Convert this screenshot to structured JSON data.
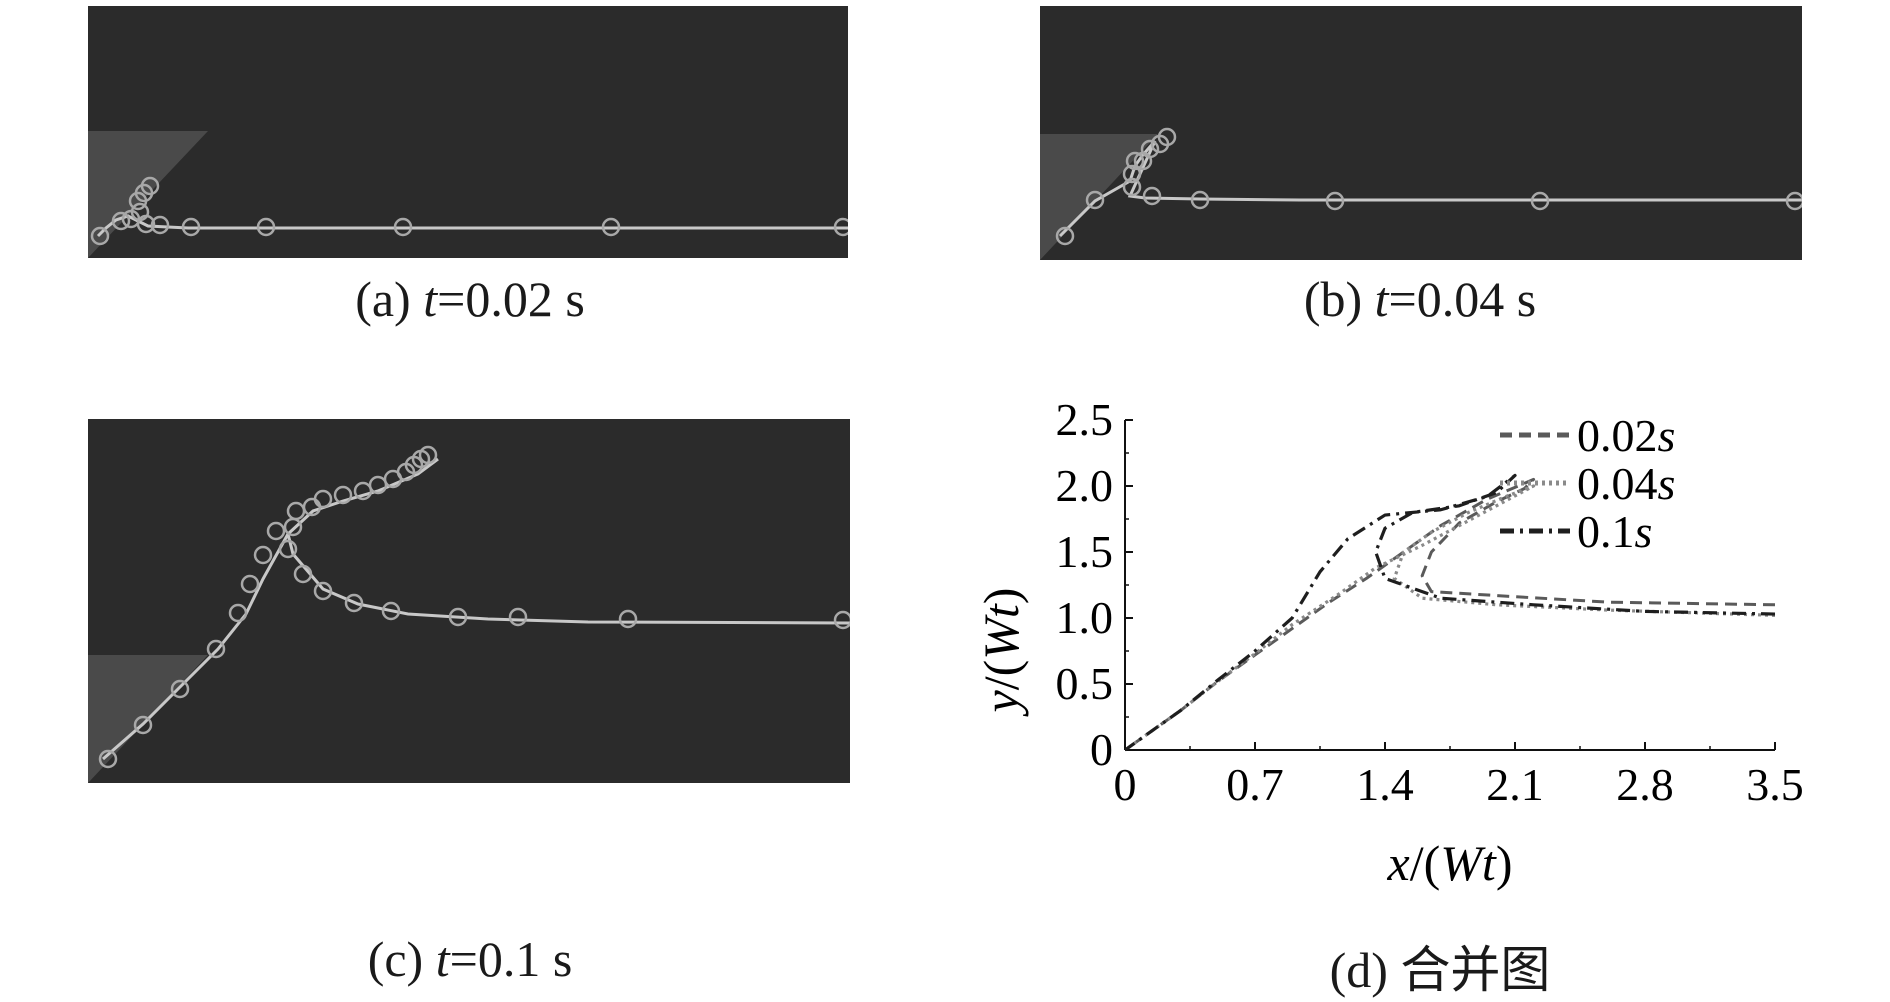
{
  "panels": [
    {
      "letter": "(a)",
      "t_label": "t",
      "eq": "=0.02 s"
    },
    {
      "letter": "(b)",
      "t_label": "t",
      "eq": "=0.04 s"
    },
    {
      "letter": "(c)",
      "t_label": "t",
      "eq": "=0.1 s"
    }
  ],
  "panel_d": {
    "caption": "(d) 合并图"
  },
  "colors": {
    "sim_bg": "#2b2b2b",
    "wedge": "#4a4a4a",
    "marker": "#a8a8a8",
    "line_002": "#5a5a5a",
    "line_004": "#8a8a8a",
    "line_01": "#1e1e1e"
  },
  "chart_data": {
    "type": "line",
    "xlabel_var": "x",
    "xlabel_rest": "/(",
    "xlabel_var2": "Wt",
    "xlabel_close": ")",
    "ylabel_var": "y",
    "ylabel_rest": "/(",
    "ylabel_var2": "Wt",
    "ylabel_close": ")",
    "xlim": [
      0,
      3.5
    ],
    "ylim": [
      0,
      2.5
    ],
    "xticks": [
      "0",
      "0.7",
      "1.4",
      "2.1",
      "2.8",
      "3.5"
    ],
    "yticks": [
      "0",
      "0.5",
      "1.0",
      "1.5",
      "2.0",
      "2.5"
    ],
    "legend_position": "top-right",
    "series": [
      {
        "name": "0.02",
        "unit": "s",
        "style": "dashed",
        "x": [
          3.5,
          2.6,
          2.0,
          1.65,
          1.6,
          1.65,
          1.8,
          2.0,
          2.15,
          2.2,
          1.95,
          1.7,
          1.5,
          1.3,
          1.1,
          0.9,
          0.7,
          0.5,
          0.3,
          0.15,
          0
        ],
        "y": [
          1.1,
          1.12,
          1.17,
          1.2,
          1.32,
          1.5,
          1.72,
          1.88,
          1.98,
          2.05,
          1.9,
          1.7,
          1.5,
          1.3,
          1.12,
          0.92,
          0.72,
          0.52,
          0.3,
          0.15,
          0
        ]
      },
      {
        "name": "0.04",
        "unit": "s",
        "style": "dotted",
        "x": [
          3.5,
          2.6,
          2.0,
          1.6,
          1.45,
          1.5,
          1.65,
          1.85,
          2.05,
          2.2,
          2.0,
          1.8,
          1.6,
          1.35,
          1.15,
          0.9,
          0.7,
          0.5,
          0.3,
          0.15,
          0
        ],
        "y": [
          1.02,
          1.06,
          1.1,
          1.15,
          1.3,
          1.5,
          1.65,
          1.8,
          1.92,
          2.0,
          1.85,
          1.7,
          1.55,
          1.38,
          1.18,
          0.95,
          0.73,
          0.52,
          0.3,
          0.15,
          0
        ],
        "y_note": ""
      },
      {
        "name": "0.1",
        "unit": "s",
        "style": "dashdot",
        "x": [
          3.5,
          2.8,
          2.2,
          1.7,
          1.4,
          1.35,
          1.4,
          1.55,
          1.8,
          2.0,
          2.1,
          1.95,
          1.7,
          1.4,
          1.2,
          1.05,
          0.9,
          0.7,
          0.5,
          0.3,
          0.15,
          0
        ],
        "y": [
          1.03,
          1.05,
          1.1,
          1.15,
          1.3,
          1.5,
          1.68,
          1.8,
          1.85,
          1.95,
          2.08,
          1.92,
          1.82,
          1.78,
          1.6,
          1.35,
          1.0,
          0.75,
          0.53,
          0.3,
          0.15,
          0
        ]
      }
    ]
  }
}
